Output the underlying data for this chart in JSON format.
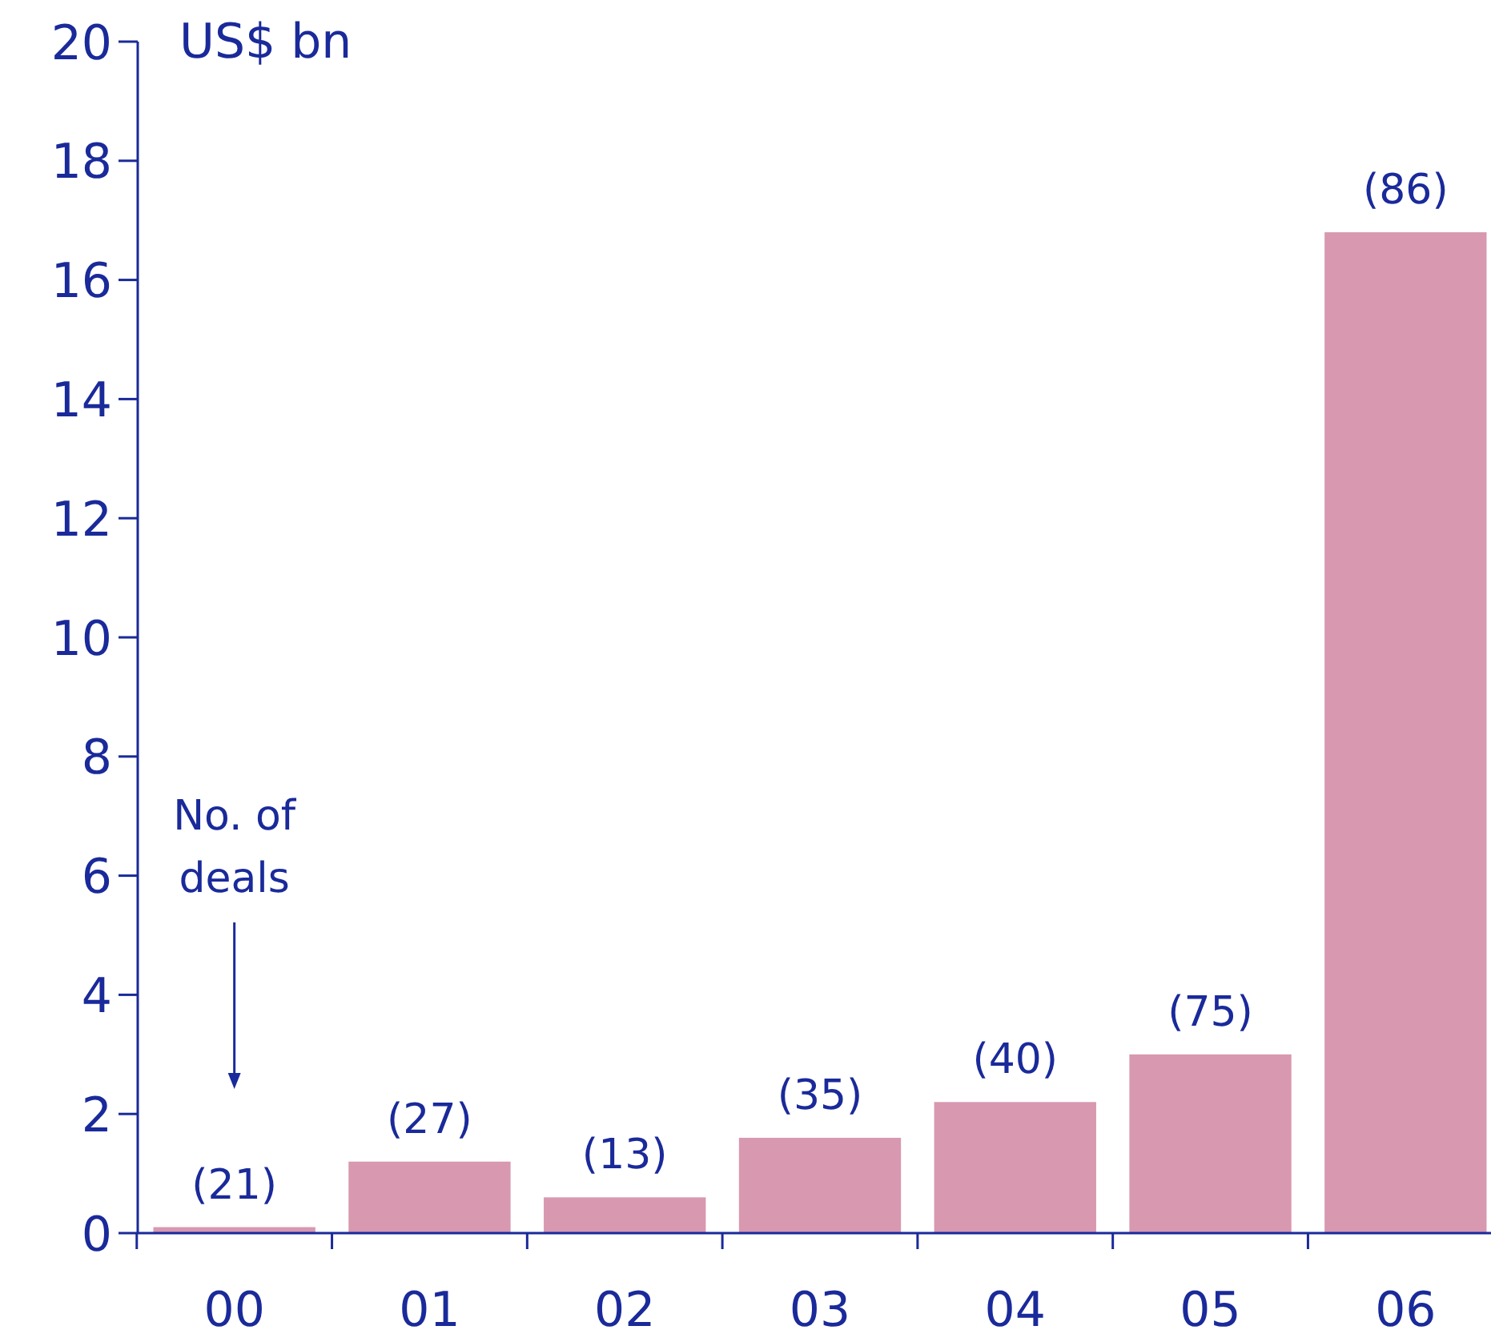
{
  "chart_data": {
    "type": "bar",
    "ylabel": "US$ bn",
    "categories": [
      "00",
      "01",
      "02",
      "03",
      "04",
      "05",
      "06"
    ],
    "values": [
      0.1,
      1.2,
      0.6,
      1.6,
      2.2,
      3.0,
      16.8
    ],
    "color": "#d898b0",
    "ylim": [
      0,
      20
    ],
    "yticks": [
      0,
      2,
      4,
      6,
      8,
      10,
      12,
      14,
      16,
      18,
      20
    ],
    "annotations": [
      "No. of deals",
      {
        "text": "(21)",
        "x": "00",
        "y": 0.1
      },
      {
        "text": "(27)",
        "x": "01",
        "y": 1.2
      },
      {
        "text": "(13)",
        "x": "02",
        "y": 0.6
      },
      {
        "text": "(35)",
        "x": "03",
        "y": 1.6
      },
      {
        "text": "(40)",
        "x": "04",
        "y": 2.2
      },
      {
        "text": "(75)",
        "x": "05",
        "y": 3.0
      },
      {
        "text": "(86)",
        "x": "06",
        "y": 16.8
      }
    ]
  }
}
